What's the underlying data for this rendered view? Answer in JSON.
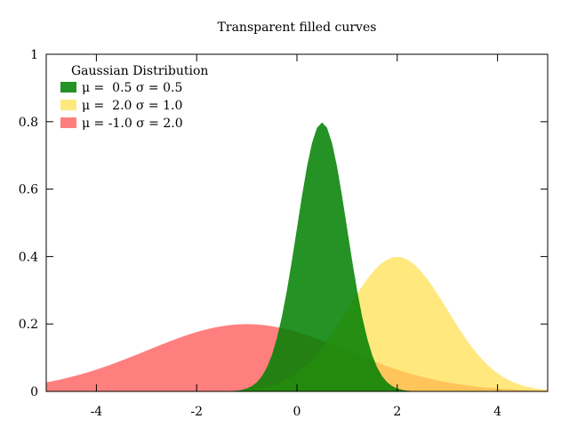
{
  "chart_data": {
    "type": "area",
    "title": "Transparent filled curves",
    "xlabel": "",
    "ylabel": "",
    "xlim": [
      -5,
      5
    ],
    "ylim": [
      0,
      1
    ],
    "grid": false,
    "legend_position": "top-left",
    "legend_title": "Gaussian Distribution",
    "x_ticks": [
      -4,
      -2,
      0,
      2,
      4
    ],
    "x_tick_labels": [
      "-4",
      "-2",
      "0",
      "2",
      "4"
    ],
    "y_ticks": [
      0,
      0.2,
      0.4,
      0.6,
      0.8,
      1
    ],
    "y_tick_labels": [
      "0",
      "0.2",
      "0.4",
      "0.6",
      "0.8",
      "1"
    ],
    "series": [
      {
        "name": "μ =  0.5 σ = 0.5",
        "mu": 0.5,
        "sigma": 0.5,
        "color": "#008000",
        "opacity": 0.86
      },
      {
        "name": "μ =  2.0 σ = 1.0",
        "mu": 2.0,
        "sigma": 1.0,
        "color": "#ffe14d",
        "opacity": 0.72
      },
      {
        "name": "μ = -1.0 σ = 2.0",
        "mu": -1.0,
        "sigma": 2.0,
        "color": "#ff0000",
        "opacity": 0.5
      }
    ]
  }
}
